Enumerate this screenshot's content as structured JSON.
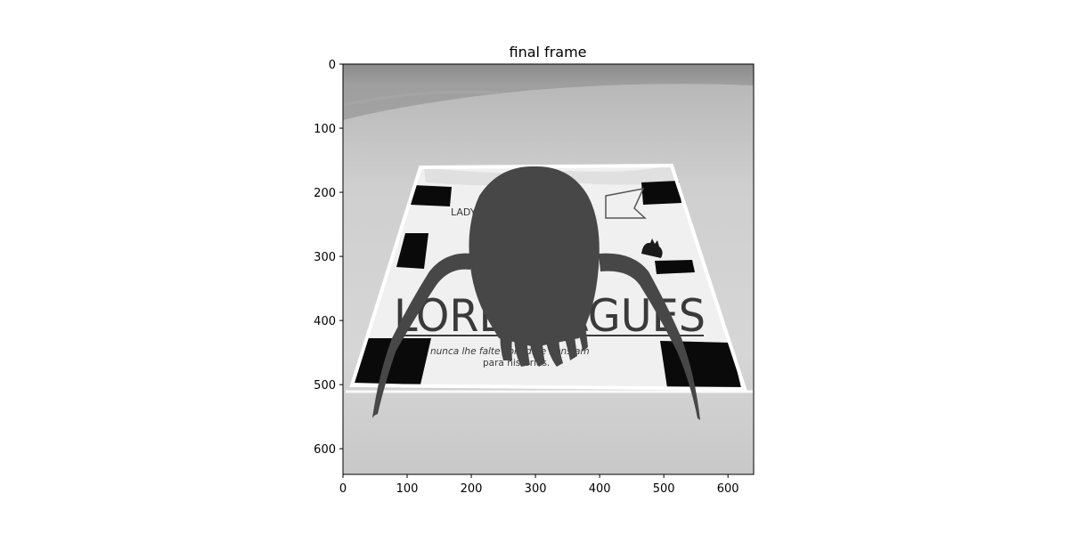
{
  "figure": {
    "title": "final frame"
  },
  "axes": {
    "x_ticks": [
      "0",
      "100",
      "200",
      "300",
      "400",
      "500",
      "600"
    ],
    "y_ticks": [
      "0",
      "100",
      "200",
      "300",
      "400",
      "500",
      "600"
    ]
  },
  "photo": {
    "description_words_on_card": {
      "big_text": "LOREI     RAGUES",
      "small_label": "LADY",
      "line1": "nunca lhe falte       comida e bons am",
      "line2": "para       histórias."
    }
  },
  "colors": {
    "floor_light": "#d4d4d4",
    "floor_dark": "#bcbcbc",
    "card": "#f1f1f1",
    "marker": "#0a0a0a",
    "creature": "#474747",
    "outline": "#ffffff"
  }
}
